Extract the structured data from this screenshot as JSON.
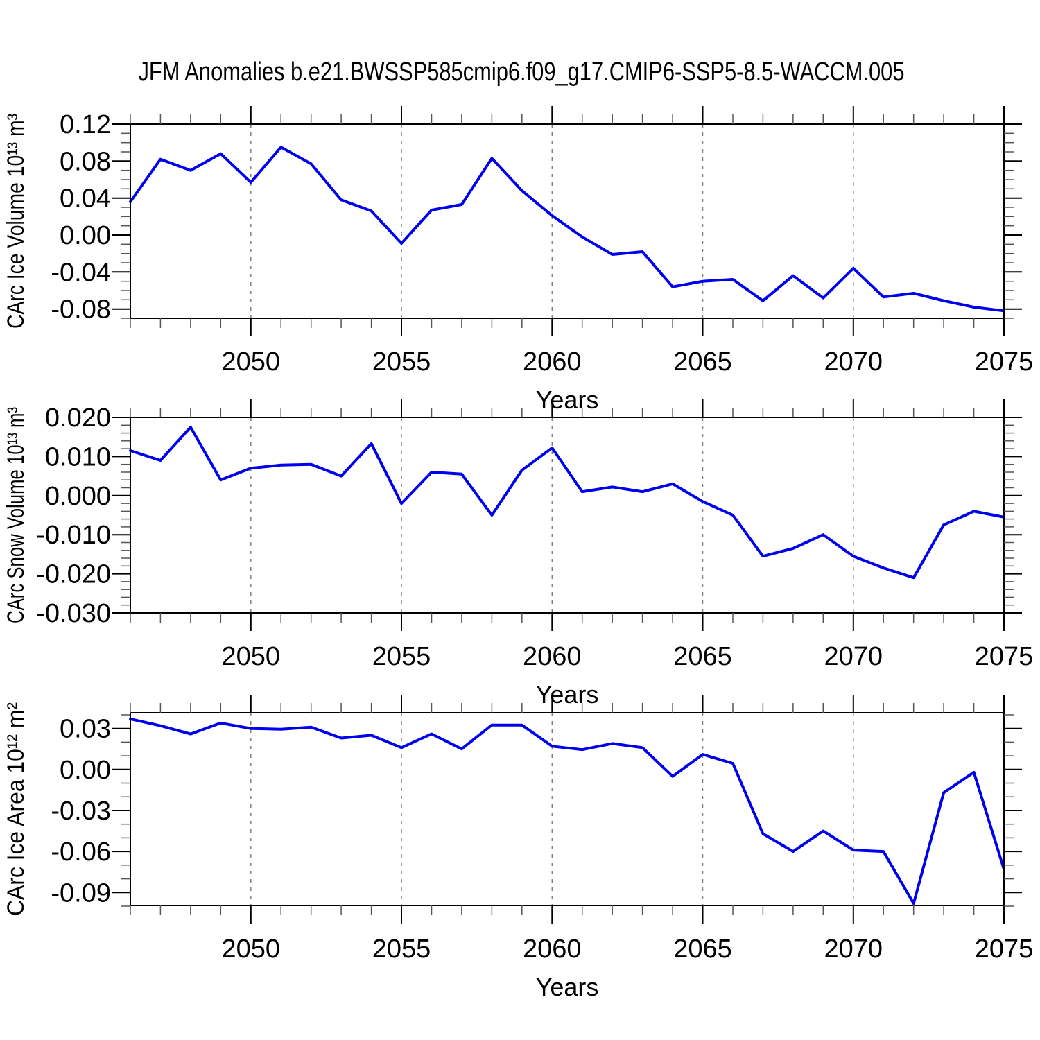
{
  "title": "JFM Anomalies b.e21.BWSSP585cmip6.f09_g17.CMIP6-SSP5-8.5-WACCM.005",
  "colors": {
    "line": "#0000F0",
    "grid": "#808080",
    "axis": "#000000",
    "minor_tick": "#555555",
    "background": "#ffffff"
  },
  "chart_data": [
    {
      "type": "line",
      "name": "ice-volume-panel",
      "ylabel": "CArc Ice Volume 10¹³ m³",
      "xlabel": "Years",
      "legend": "none",
      "grid": "vertical-dashed",
      "x": [
        2046,
        2047,
        2048,
        2049,
        2050,
        2051,
        2052,
        2053,
        2054,
        2055,
        2056,
        2057,
        2058,
        2059,
        2060,
        2061,
        2062,
        2063,
        2064,
        2065,
        2066,
        2067,
        2068,
        2069,
        2070,
        2071,
        2072,
        2073,
        2074,
        2075
      ],
      "values": [
        0.036,
        0.082,
        0.07,
        0.088,
        0.057,
        0.095,
        0.077,
        0.038,
        0.026,
        -0.009,
        0.027,
        0.033,
        0.083,
        0.048,
        0.021,
        -0.002,
        -0.021,
        -0.018,
        -0.056,
        -0.05,
        -0.048,
        -0.071,
        -0.044,
        -0.068,
        -0.036,
        -0.067,
        -0.063,
        -0.071,
        -0.078,
        -0.082
      ],
      "xlim": [
        2046,
        2075
      ],
      "ylim": [
        -0.09,
        0.12
      ],
      "xticks": [
        2050,
        2055,
        2060,
        2065,
        2070,
        2075
      ],
      "xtick_labels": [
        "2050",
        "2055",
        "2060",
        "2065",
        "2070",
        "2075"
      ],
      "x_minor_step": 1,
      "yticks": [
        0.12,
        0.08,
        0.04,
        0.0,
        -0.04,
        -0.08
      ],
      "ytick_labels": [
        "0.12",
        "0.08",
        "0.04",
        "0.00",
        "-0.04",
        "-0.08"
      ],
      "y_minor_step": 0.01,
      "grid_lines_x": [
        2050,
        2055,
        2060,
        2065,
        2070
      ]
    },
    {
      "type": "line",
      "name": "snow-volume-panel",
      "ylabel": "CArc Snow Volume 10¹³ m³",
      "xlabel": "Years",
      "legend": "none",
      "grid": "vertical-dashed",
      "x": [
        2046,
        2047,
        2048,
        2049,
        2050,
        2051,
        2052,
        2053,
        2054,
        2055,
        2056,
        2057,
        2058,
        2059,
        2060,
        2061,
        2062,
        2063,
        2064,
        2065,
        2066,
        2067,
        2068,
        2069,
        2070,
        2071,
        2072,
        2073,
        2074,
        2075
      ],
      "values": [
        0.0115,
        0.009,
        0.0175,
        0.004,
        0.007,
        0.0078,
        0.008,
        0.005,
        0.0133,
        -0.002,
        0.006,
        0.0055,
        -0.005,
        0.0065,
        0.0122,
        0.001,
        0.0022,
        0.001,
        0.003,
        -0.0015,
        -0.005,
        -0.0155,
        -0.0135,
        -0.01,
        -0.0155,
        -0.0185,
        -0.021,
        -0.0075,
        -0.004,
        -0.0055
      ],
      "xlim": [
        2046,
        2075
      ],
      "ylim": [
        -0.03,
        0.02
      ],
      "xticks": [
        2050,
        2055,
        2060,
        2065,
        2070,
        2075
      ],
      "xtick_labels": [
        "2050",
        "2055",
        "2060",
        "2065",
        "2070",
        "2075"
      ],
      "x_minor_step": 1,
      "yticks": [
        0.02,
        0.01,
        0.0,
        -0.01,
        -0.02,
        -0.03
      ],
      "ytick_labels": [
        "0.020",
        "0.010",
        "0.000",
        "-0.010",
        "-0.020",
        "-0.030"
      ],
      "y_minor_step": 0.002,
      "grid_lines_x": [
        2050,
        2055,
        2060,
        2065,
        2070
      ]
    },
    {
      "type": "line",
      "name": "ice-area-panel",
      "ylabel": "CArc Ice Area 10¹² m²",
      "xlabel": "Years",
      "legend": "none",
      "grid": "vertical-dashed",
      "x": [
        2046,
        2047,
        2048,
        2049,
        2050,
        2051,
        2052,
        2053,
        2054,
        2055,
        2056,
        2057,
        2058,
        2059,
        2060,
        2061,
        2062,
        2063,
        2064,
        2065,
        2066,
        2067,
        2068,
        2069,
        2070,
        2071,
        2072,
        2073,
        2074,
        2075
      ],
      "values": [
        0.037,
        0.032,
        0.026,
        0.034,
        0.03,
        0.0295,
        0.031,
        0.023,
        0.025,
        0.016,
        0.026,
        0.015,
        0.0325,
        0.0325,
        0.017,
        0.0145,
        0.019,
        0.016,
        -0.005,
        0.011,
        0.0045,
        -0.047,
        -0.06,
        -0.045,
        -0.059,
        -0.06,
        -0.098,
        -0.017,
        -0.002,
        -0.073
      ],
      "xlim": [
        2046,
        2075
      ],
      "ylim": [
        -0.0995,
        0.0415
      ],
      "xticks": [
        2050,
        2055,
        2060,
        2065,
        2070,
        2075
      ],
      "xtick_labels": [
        "2050",
        "2055",
        "2060",
        "2065",
        "2070",
        "2075"
      ],
      "x_minor_step": 1,
      "yticks": [
        0.03,
        0.0,
        -0.03,
        -0.06,
        -0.09
      ],
      "ytick_labels": [
        "0.03",
        "0.00",
        "-0.03",
        "-0.06",
        "-0.09"
      ],
      "y_minor_step": 0.01,
      "grid_lines_x": [
        2050,
        2055,
        2060,
        2065,
        2070
      ]
    }
  ]
}
